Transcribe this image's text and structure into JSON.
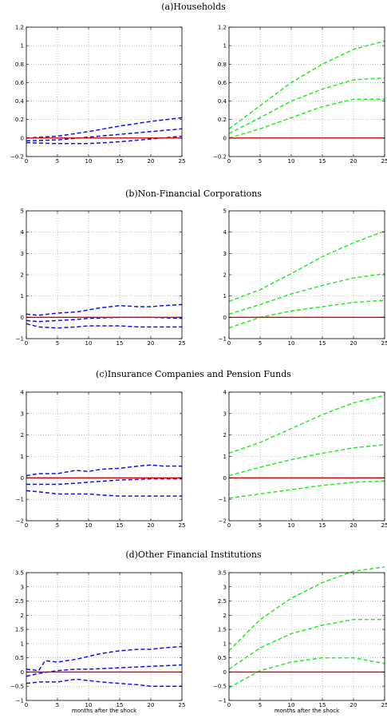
{
  "chart_data": [
    {
      "type": "line",
      "title": "(a)Households",
      "xlabel": "",
      "xlim": [
        0,
        25
      ],
      "xticks": [
        0,
        5,
        10,
        15,
        20,
        25
      ],
      "ylim": [
        -0.2,
        1.2
      ],
      "yticks": [
        -0.2,
        0,
        0.2,
        0.4,
        0.6,
        0.8,
        1,
        1.2
      ],
      "grid": true,
      "series": [
        {
          "color": "#1010ee",
          "style": "dashed",
          "x": [
            0,
            5,
            10,
            15,
            20,
            25
          ],
          "y": [
            0.0,
            0.02,
            0.07,
            0.13,
            0.18,
            0.22
          ]
        },
        {
          "color": "#1010ee",
          "style": "dashed",
          "x": [
            0,
            5,
            10,
            15,
            20,
            25
          ],
          "y": [
            -0.03,
            -0.02,
            0.01,
            0.04,
            0.07,
            0.1
          ]
        },
        {
          "color": "#1010ee",
          "style": "dashed",
          "x": [
            0,
            5,
            10,
            15,
            20,
            25
          ],
          "y": [
            -0.05,
            -0.06,
            -0.06,
            -0.04,
            -0.01,
            0.02
          ]
        },
        {
          "color": "#dd0000",
          "style": "solid",
          "x": [
            0,
            25
          ],
          "y": [
            0,
            0
          ]
        }
      ]
    },
    {
      "type": "line",
      "title": "",
      "xlabel": "",
      "xlim": [
        0,
        25
      ],
      "xticks": [
        0,
        5,
        10,
        15,
        20,
        25
      ],
      "ylim": [
        -0.2,
        1.2
      ],
      "yticks": [
        -0.2,
        0,
        0.2,
        0.4,
        0.6,
        0.8,
        1,
        1.2
      ],
      "grid": true,
      "series": [
        {
          "color": "#22ee22",
          "style": "dashed",
          "x": [
            0,
            5,
            10,
            15,
            20,
            25
          ],
          "y": [
            0.1,
            0.35,
            0.6,
            0.8,
            0.96,
            1.05
          ]
        },
        {
          "color": "#22ee22",
          "style": "dashed",
          "x": [
            0,
            5,
            10,
            15,
            20,
            25
          ],
          "y": [
            0.05,
            0.22,
            0.4,
            0.53,
            0.63,
            0.65
          ]
        },
        {
          "color": "#22ee22",
          "style": "dashed",
          "x": [
            0,
            5,
            10,
            15,
            20,
            25
          ],
          "y": [
            0.0,
            0.1,
            0.22,
            0.34,
            0.42,
            0.42
          ]
        },
        {
          "color": "#dd0000",
          "style": "solid",
          "x": [
            0,
            25
          ],
          "y": [
            0,
            0
          ]
        }
      ]
    },
    {
      "type": "line",
      "title": "(b)Non-Financial Corporations",
      "xlabel": "",
      "xlim": [
        0,
        25
      ],
      "xticks": [
        0,
        5,
        10,
        15,
        20,
        25
      ],
      "ylim": [
        -1,
        5
      ],
      "yticks": [
        -1,
        0,
        1,
        2,
        3,
        4,
        5
      ],
      "grid": true,
      "series": [
        {
          "color": "#1010ee",
          "style": "dashed",
          "x": [
            0,
            2,
            5,
            8,
            10,
            12,
            15,
            18,
            20,
            22,
            25
          ],
          "y": [
            0.15,
            0.1,
            0.2,
            0.25,
            0.35,
            0.45,
            0.55,
            0.5,
            0.5,
            0.55,
            0.6
          ]
        },
        {
          "color": "#1010ee",
          "style": "dashed",
          "x": [
            0,
            2,
            5,
            8,
            10,
            15,
            20,
            25
          ],
          "y": [
            -0.15,
            -0.2,
            -0.15,
            -0.1,
            -0.05,
            0.0,
            0.0,
            -0.05
          ]
        },
        {
          "color": "#1010ee",
          "style": "dashed",
          "x": [
            0,
            2,
            5,
            8,
            10,
            12,
            15,
            18,
            20,
            22,
            25
          ],
          "y": [
            -0.3,
            -0.45,
            -0.5,
            -0.45,
            -0.4,
            -0.4,
            -0.4,
            -0.45,
            -0.45,
            -0.45,
            -0.45
          ]
        },
        {
          "color": "#dd0000",
          "style": "solid",
          "x": [
            0,
            25
          ],
          "y": [
            0,
            0
          ]
        }
      ]
    },
    {
      "type": "line",
      "title": "",
      "xlabel": "",
      "xlim": [
        0,
        25
      ],
      "xticks": [
        0,
        5,
        10,
        15,
        20,
        25
      ],
      "ylim": [
        -1,
        5
      ],
      "yticks": [
        -1,
        0,
        1,
        2,
        3,
        4,
        5
      ],
      "grid": true,
      "series": [
        {
          "color": "#22ee22",
          "style": "dashed",
          "x": [
            0,
            5,
            10,
            15,
            20,
            25
          ],
          "y": [
            0.75,
            1.3,
            2.05,
            2.85,
            3.5,
            4.05
          ]
        },
        {
          "color": "#22ee22",
          "style": "dashed",
          "x": [
            0,
            5,
            10,
            15,
            20,
            25
          ],
          "y": [
            0.15,
            0.6,
            1.1,
            1.5,
            1.85,
            2.05
          ]
        },
        {
          "color": "#22ee22",
          "style": "dashed",
          "x": [
            0,
            5,
            10,
            15,
            20,
            25
          ],
          "y": [
            -0.5,
            0.0,
            0.3,
            0.5,
            0.7,
            0.8
          ]
        },
        {
          "color": "#dd0000",
          "style": "solid",
          "x": [
            0,
            25
          ],
          "y": [
            0,
            0
          ]
        }
      ]
    },
    {
      "type": "line",
      "title": "(c)Insurance Companies and Pension Funds",
      "xlabel": "",
      "xlim": [
        0,
        25
      ],
      "xticks": [
        0,
        5,
        10,
        15,
        20,
        25
      ],
      "ylim": [
        -2,
        4
      ],
      "yticks": [
        -2,
        -1,
        0,
        1,
        2,
        3,
        4
      ],
      "grid": true,
      "series": [
        {
          "color": "#1010ee",
          "style": "dashed",
          "x": [
            0,
            2,
            5,
            8,
            10,
            12,
            15,
            18,
            20,
            22,
            25
          ],
          "y": [
            0.1,
            0.2,
            0.2,
            0.35,
            0.3,
            0.4,
            0.45,
            0.55,
            0.6,
            0.55,
            0.55
          ]
        },
        {
          "color": "#1010ee",
          "style": "dashed",
          "x": [
            0,
            2,
            5,
            8,
            10,
            15,
            20,
            25
          ],
          "y": [
            -0.3,
            -0.3,
            -0.3,
            -0.25,
            -0.2,
            -0.1,
            -0.05,
            -0.05
          ]
        },
        {
          "color": "#1010ee",
          "style": "dashed",
          "x": [
            0,
            2,
            5,
            8,
            10,
            12,
            15,
            18,
            20,
            22,
            25
          ],
          "y": [
            -0.6,
            -0.65,
            -0.75,
            -0.75,
            -0.75,
            -0.8,
            -0.85,
            -0.85,
            -0.85,
            -0.85,
            -0.85
          ]
        },
        {
          "color": "#dd0000",
          "style": "solid",
          "x": [
            0,
            25
          ],
          "y": [
            0,
            0
          ]
        }
      ]
    },
    {
      "type": "line",
      "title": "",
      "xlabel": "",
      "xlim": [
        0,
        25
      ],
      "xticks": [
        0,
        5,
        10,
        15,
        20,
        25
      ],
      "ylim": [
        -2,
        4
      ],
      "yticks": [
        -2,
        -1,
        0,
        1,
        2,
        3,
        4
      ],
      "grid": true,
      "series": [
        {
          "color": "#22ee22",
          "style": "dashed",
          "x": [
            0,
            5,
            10,
            15,
            20,
            25
          ],
          "y": [
            1.15,
            1.65,
            2.3,
            2.95,
            3.5,
            3.85
          ]
        },
        {
          "color": "#22ee22",
          "style": "dashed",
          "x": [
            0,
            5,
            10,
            15,
            20,
            25
          ],
          "y": [
            0.1,
            0.5,
            0.85,
            1.15,
            1.4,
            1.55
          ]
        },
        {
          "color": "#22ee22",
          "style": "dashed",
          "x": [
            0,
            5,
            10,
            15,
            20,
            25
          ],
          "y": [
            -0.95,
            -0.75,
            -0.55,
            -0.35,
            -0.2,
            -0.15
          ]
        },
        {
          "color": "#dd0000",
          "style": "solid",
          "x": [
            0,
            25
          ],
          "y": [
            0,
            0
          ]
        }
      ]
    },
    {
      "type": "line",
      "title": "(d)Other Financial Institutions",
      "xlabel": "months after the shock",
      "xlim": [
        0,
        25
      ],
      "xticks": [
        0,
        5,
        10,
        15,
        20,
        25
      ],
      "ylim": [
        -1,
        3.5
      ],
      "yticks": [
        -1,
        -0.5,
        0,
        0.5,
        1,
        1.5,
        2,
        2.5,
        3,
        3.5
      ],
      "grid": true,
      "series": [
        {
          "color": "#1010ee",
          "style": "dashed",
          "x": [
            0,
            2,
            3,
            5,
            8,
            10,
            12,
            15,
            18,
            20,
            22,
            25
          ],
          "y": [
            0.1,
            0.05,
            0.4,
            0.35,
            0.45,
            0.55,
            0.65,
            0.75,
            0.8,
            0.8,
            0.85,
            0.9
          ]
        },
        {
          "color": "#1010ee",
          "style": "dashed",
          "x": [
            0,
            2,
            5,
            8,
            10,
            15,
            20,
            25
          ],
          "y": [
            -0.15,
            -0.05,
            0.05,
            0.1,
            0.1,
            0.15,
            0.2,
            0.25
          ]
        },
        {
          "color": "#1010ee",
          "style": "dashed",
          "x": [
            0,
            2,
            5,
            8,
            10,
            12,
            15,
            18,
            20,
            22,
            25
          ],
          "y": [
            -0.4,
            -0.35,
            -0.35,
            -0.25,
            -0.3,
            -0.35,
            -0.4,
            -0.45,
            -0.5,
            -0.5,
            -0.5
          ]
        },
        {
          "color": "#dd0000",
          "style": "solid",
          "x": [
            0,
            25
          ],
          "y": [
            0,
            0
          ]
        }
      ]
    },
    {
      "type": "line",
      "title": "",
      "xlabel": "months after the shock",
      "xlim": [
        0,
        25
      ],
      "xticks": [
        0,
        5,
        10,
        15,
        20,
        25
      ],
      "ylim": [
        -1,
        3.5
      ],
      "yticks": [
        -1,
        -0.5,
        0,
        0.5,
        1,
        1.5,
        2,
        2.5,
        3,
        3.5
      ],
      "grid": true,
      "series": [
        {
          "color": "#22ee22",
          "style": "dashed",
          "x": [
            0,
            5,
            10,
            15,
            20,
            25
          ],
          "y": [
            0.75,
            1.85,
            2.6,
            3.15,
            3.55,
            3.7
          ]
        },
        {
          "color": "#22ee22",
          "style": "dashed",
          "x": [
            0,
            5,
            10,
            15,
            20,
            25
          ],
          "y": [
            0.1,
            0.85,
            1.35,
            1.65,
            1.85,
            1.85
          ]
        },
        {
          "color": "#22ee22",
          "style": "dashed",
          "x": [
            0,
            5,
            10,
            15,
            20,
            25
          ],
          "y": [
            -0.55,
            0.05,
            0.35,
            0.5,
            0.5,
            0.3
          ]
        },
        {
          "color": "#dd0000",
          "style": "solid",
          "x": [
            0,
            25
          ],
          "y": [
            0,
            0
          ]
        }
      ]
    }
  ]
}
